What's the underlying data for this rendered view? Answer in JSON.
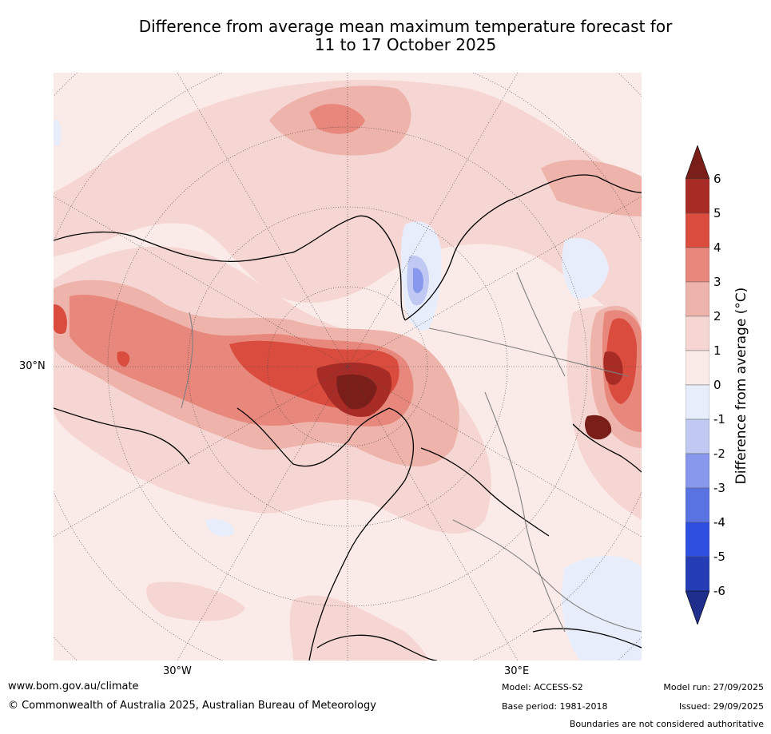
{
  "title_line1": "Difference from average mean maximum temperature forecast for",
  "title_line2": "11 to 17 October 2025",
  "map": {
    "lat_label": "30°N",
    "lon_label_left": "30°W",
    "lon_label_right": "30°E"
  },
  "colorbar": {
    "label": "Difference from average (°C)",
    "ticks": [
      "6",
      "5",
      "4",
      "3",
      "2",
      "1",
      "0",
      "-1",
      "-2",
      "-3",
      "-4",
      "-5",
      "-6"
    ],
    "colors": [
      "#a92b25",
      "#d94c3e",
      "#e8877c",
      "#eeb3ab",
      "#f6d6d2",
      "#fbebe8",
      "#e8edfb",
      "#c0c9f1",
      "#8898ec",
      "#5a73e2",
      "#2f4fe0",
      "#243db4"
    ],
    "over_color": "#7a1e1a",
    "under_color": "#1e2e8a"
  },
  "footer": {
    "website": "www.bom.gov.au/climate",
    "copyright": "© Commonwealth of Australia 2025, Australian Bureau of Meteorology",
    "model": "Model: ACCESS-S2",
    "base_period": "Base period: 1981-2018",
    "model_run": "Model run: 27/09/2025",
    "issued": "Issued: 29/09/2025",
    "disclaimer": "Boundaries are not considered authoritative"
  }
}
